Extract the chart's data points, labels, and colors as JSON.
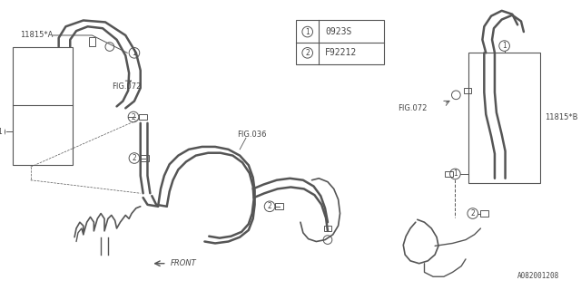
{
  "background_color": "#ffffff",
  "line_color": "#555555",
  "text_color": "#444444",
  "fig_width": 6.4,
  "fig_height": 3.2,
  "dpi": 100,
  "labels": {
    "11815A": "11815*A",
    "11815B": "11815*B",
    "FIG072_left": "FIG.072",
    "FIG072_right": "FIG.072",
    "FIG036": "FIG.036",
    "FRONT": "FRONT",
    "part1": "0923S",
    "part2": "F92212",
    "footer": "A082001208"
  }
}
